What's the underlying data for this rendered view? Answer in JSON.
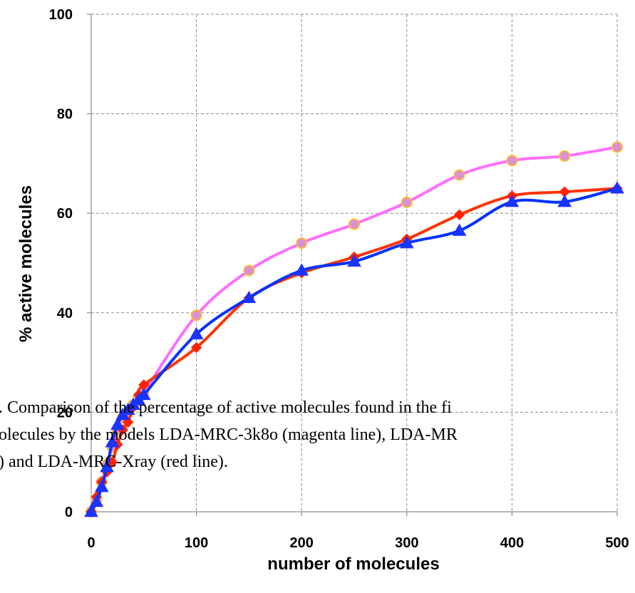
{
  "caption": {
    "lines": [
      ". Comparison of the percentage of active molecules found in the fi",
      "olecules by the models LDA-MRC-3k8o (magenta line), LDA-MR",
      ") and LDA-MRC-Xray (red line)."
    ]
  },
  "chart_data": {
    "type": "line",
    "xlabel": "number of molecules",
    "ylabel": "% active molecules",
    "xlim": [
      0,
      500
    ],
    "ylim": [
      0,
      100
    ],
    "x_ticks": [
      0,
      100,
      200,
      300,
      400,
      500
    ],
    "y_ticks": [
      0,
      20,
      40,
      60,
      80,
      100
    ],
    "grid": true,
    "series": [
      {
        "color": "#ff6dff",
        "marker": "circle",
        "marker_fill": "#d891d8",
        "marker_stroke": "#ffbb33",
        "x": [
          0,
          5,
          10,
          15,
          20,
          25,
          30,
          35,
          40,
          45,
          50,
          100,
          150,
          200,
          250,
          300,
          350,
          400,
          450,
          500
        ],
        "y": [
          0,
          2.5,
          6,
          9.5,
          13,
          16.5,
          19,
          20,
          21.5,
          23,
          24,
          39.5,
          48.5,
          54,
          57.8,
          62.2,
          67.7,
          70.6,
          71.5,
          73.3
        ]
      },
      {
        "color": "#ff3300",
        "marker": "diamond",
        "marker_fill": "#ff2200",
        "marker_stroke": "#ff2200",
        "x": [
          0,
          5,
          10,
          15,
          20,
          25,
          30,
          35,
          40,
          45,
          50,
          100,
          150,
          200,
          250,
          300,
          350,
          400,
          450,
          500
        ],
        "y": [
          0,
          3,
          6,
          8,
          10,
          13.5,
          16.5,
          18,
          21,
          23.5,
          25.5,
          33,
          43,
          48,
          51.2,
          54.8,
          59.7,
          63.5,
          64.3,
          65
        ]
      },
      {
        "color": "#0033ff",
        "marker": "triangle",
        "marker_fill": "#1a33ff",
        "marker_stroke": "#1a33ff",
        "x": [
          0,
          5,
          10,
          15,
          20,
          25,
          30,
          35,
          40,
          45,
          50,
          100,
          150,
          200,
          250,
          300,
          350,
          400,
          450,
          500
        ],
        "y": [
          0,
          2,
          5,
          9,
          14,
          17.5,
          19.5,
          20.5,
          21.5,
          22.5,
          23.5,
          35.7,
          43,
          48.5,
          50.3,
          54,
          56.5,
          62.3,
          62.3,
          65
        ]
      }
    ]
  }
}
